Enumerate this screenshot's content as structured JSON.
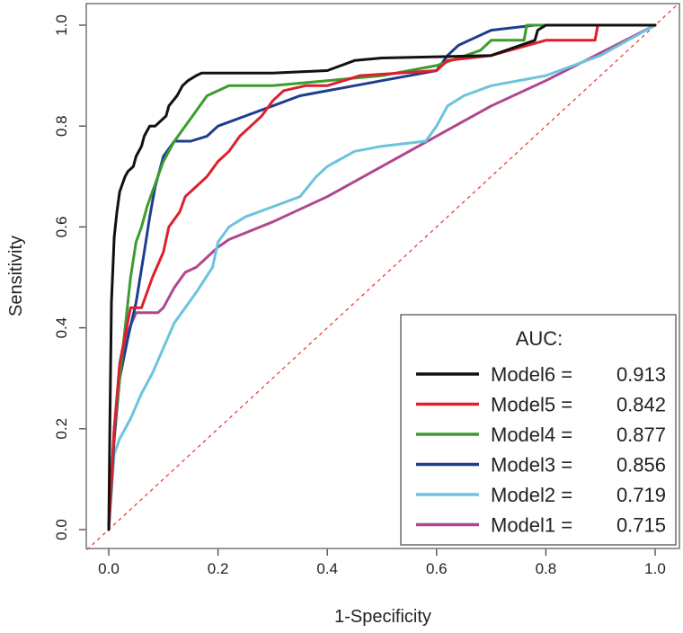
{
  "chart_data": {
    "type": "line",
    "title": "",
    "xlabel": "1-Specificity",
    "ylabel": "Sensitivity",
    "xlim": [
      0,
      1
    ],
    "ylim": [
      0,
      1
    ],
    "x_ticks": [
      "0.0",
      "0.2",
      "0.4",
      "0.6",
      "0.8",
      "1.0"
    ],
    "y_ticks": [
      "0.0",
      "0.2",
      "0.4",
      "0.6",
      "0.8",
      "1.0"
    ],
    "grid": false,
    "reference_line": {
      "x": [
        0,
        1
      ],
      "y": [
        0,
        1
      ],
      "color": "#e8413a",
      "style": "dashed"
    },
    "legend": {
      "title": "AUC:",
      "placement": "bottom-right"
    },
    "series": [
      {
        "name": "Model6",
        "label": "Model6 =",
        "auc": "0.913",
        "color": "#111111",
        "x": [
          0,
          0.002,
          0.005,
          0.01,
          0.015,
          0.02,
          0.03,
          0.035,
          0.045,
          0.05,
          0.06,
          0.065,
          0.075,
          0.085,
          0.105,
          0.11,
          0.125,
          0.135,
          0.145,
          0.16,
          0.17,
          0.22,
          0.3,
          0.4,
          0.45,
          0.5,
          0.7,
          0.78,
          0.785,
          0.8,
          1
        ],
        "y": [
          0,
          0.2,
          0.45,
          0.58,
          0.63,
          0.67,
          0.7,
          0.71,
          0.72,
          0.74,
          0.76,
          0.78,
          0.8,
          0.8,
          0.82,
          0.84,
          0.86,
          0.88,
          0.89,
          0.9,
          0.905,
          0.905,
          0.905,
          0.91,
          0.93,
          0.935,
          0.94,
          0.97,
          0.99,
          1,
          1
        ]
      },
      {
        "name": "Model5",
        "label": "Model5 =",
        "auc": "0.842",
        "color": "#dd1f2e",
        "x": [
          0,
          0.01,
          0.02,
          0.04,
          0.06,
          0.08,
          0.1,
          0.11,
          0.13,
          0.14,
          0.16,
          0.18,
          0.2,
          0.22,
          0.24,
          0.26,
          0.28,
          0.3,
          0.32,
          0.36,
          0.4,
          0.46,
          0.6,
          0.62,
          0.7,
          0.8,
          0.89,
          0.895,
          1
        ],
        "y": [
          0,
          0.2,
          0.33,
          0.44,
          0.44,
          0.5,
          0.55,
          0.6,
          0.63,
          0.66,
          0.68,
          0.7,
          0.73,
          0.75,
          0.78,
          0.8,
          0.82,
          0.85,
          0.87,
          0.88,
          0.88,
          0.9,
          0.91,
          0.93,
          0.94,
          0.97,
          0.97,
          1,
          1
        ]
      },
      {
        "name": "Model4",
        "label": "Model4 =",
        "auc": "0.877",
        "color": "#3c9c2e",
        "x": [
          0,
          0.01,
          0.02,
          0.03,
          0.04,
          0.05,
          0.06,
          0.07,
          0.08,
          0.09,
          0.1,
          0.12,
          0.14,
          0.16,
          0.18,
          0.2,
          0.22,
          0.3,
          0.4,
          0.5,
          0.6,
          0.68,
          0.7,
          0.76,
          0.765,
          1
        ],
        "y": [
          0,
          0.2,
          0.3,
          0.4,
          0.5,
          0.57,
          0.6,
          0.64,
          0.67,
          0.7,
          0.73,
          0.77,
          0.8,
          0.83,
          0.86,
          0.87,
          0.88,
          0.88,
          0.89,
          0.9,
          0.92,
          0.95,
          0.97,
          0.97,
          1,
          1
        ]
      },
      {
        "name": "Model3",
        "label": "Model3 =",
        "auc": "0.856",
        "color": "#1f3d8f",
        "x": [
          0,
          0.01,
          0.02,
          0.035,
          0.05,
          0.065,
          0.075,
          0.085,
          0.095,
          0.1,
          0.12,
          0.15,
          0.18,
          0.2,
          0.25,
          0.3,
          0.35,
          0.4,
          0.45,
          0.5,
          0.6,
          0.62,
          0.64,
          0.68,
          0.7,
          0.78,
          1
        ],
        "y": [
          0,
          0.18,
          0.3,
          0.38,
          0.45,
          0.55,
          0.62,
          0.68,
          0.72,
          0.74,
          0.77,
          0.77,
          0.78,
          0.8,
          0.82,
          0.84,
          0.86,
          0.87,
          0.88,
          0.89,
          0.91,
          0.94,
          0.96,
          0.98,
          0.99,
          1,
          1
        ]
      },
      {
        "name": "Model2",
        "label": "Model2 =",
        "auc": "0.719",
        "color": "#6cc4dc",
        "x": [
          0,
          0.01,
          0.02,
          0.04,
          0.06,
          0.08,
          0.1,
          0.12,
          0.14,
          0.16,
          0.19,
          0.2,
          0.22,
          0.25,
          0.3,
          0.35,
          0.38,
          0.4,
          0.45,
          0.5,
          0.58,
          0.6,
          0.62,
          0.65,
          0.7,
          0.8,
          0.9,
          1
        ],
        "y": [
          0,
          0.15,
          0.18,
          0.22,
          0.27,
          0.31,
          0.36,
          0.41,
          0.44,
          0.47,
          0.52,
          0.57,
          0.6,
          0.62,
          0.64,
          0.66,
          0.7,
          0.72,
          0.75,
          0.76,
          0.77,
          0.8,
          0.84,
          0.86,
          0.88,
          0.9,
          0.94,
          1
        ]
      },
      {
        "name": "Model1",
        "label": "Model1 =",
        "auc": "0.715",
        "color": "#b0478e",
        "x": [
          0,
          0.005,
          0.01,
          0.02,
          0.03,
          0.05,
          0.09,
          0.1,
          0.12,
          0.14,
          0.16,
          0.18,
          0.2,
          0.22,
          0.3,
          0.4,
          0.5,
          0.6,
          0.7,
          0.8,
          0.9,
          1
        ],
        "y": [
          0,
          0.1,
          0.2,
          0.3,
          0.38,
          0.43,
          0.43,
          0.44,
          0.48,
          0.51,
          0.52,
          0.54,
          0.56,
          0.575,
          0.61,
          0.66,
          0.72,
          0.78,
          0.84,
          0.89,
          0.945,
          1
        ]
      }
    ]
  }
}
